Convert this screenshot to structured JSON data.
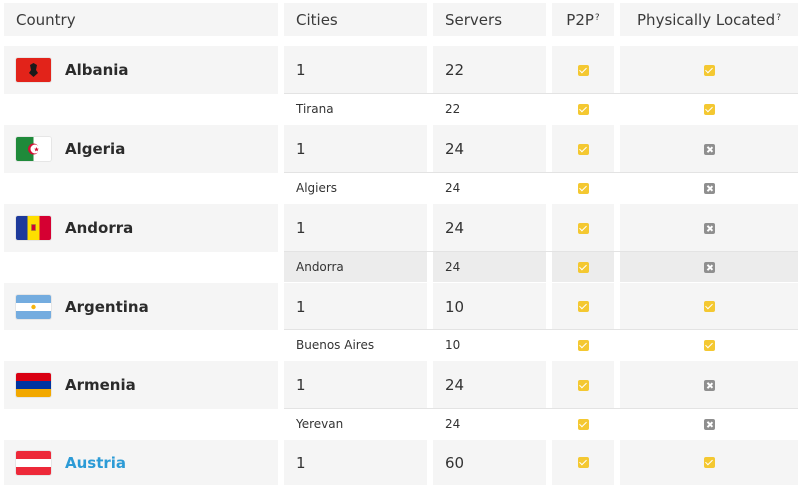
{
  "headers": {
    "country": "Country",
    "cities": "Cities",
    "servers": "Servers",
    "p2p": "P2P",
    "p2p_help": "?",
    "physically_located": "Physically Located",
    "physically_located_help": "?"
  },
  "rows": [
    {
      "country": "Albania",
      "flag": "albania-flag-icon",
      "cities_count": "1",
      "servers": "22",
      "p2p": true,
      "physical": true,
      "city": "Tirana",
      "city_servers": "22",
      "city_p2p": true,
      "city_physical": true
    },
    {
      "country": "Algeria",
      "flag": "algeria-flag-icon",
      "cities_count": "1",
      "servers": "24",
      "p2p": true,
      "physical": false,
      "city": "Algiers",
      "city_servers": "24",
      "city_p2p": true,
      "city_physical": false
    },
    {
      "country": "Andorra",
      "flag": "andorra-flag-icon",
      "cities_count": "1",
      "servers": "24",
      "p2p": true,
      "physical": false,
      "city": "Andorra",
      "city_servers": "24",
      "city_p2p": true,
      "city_physical": false
    },
    {
      "country": "Argentina",
      "flag": "argentina-flag-icon",
      "cities_count": "1",
      "servers": "10",
      "p2p": true,
      "physical": true,
      "city": "Buenos Aires",
      "city_servers": "10",
      "city_p2p": true,
      "city_physical": true
    },
    {
      "country": "Armenia",
      "flag": "armenia-flag-icon",
      "cities_count": "1",
      "servers": "24",
      "p2p": true,
      "physical": false,
      "city": "Yerevan",
      "city_servers": "24",
      "city_p2p": true,
      "city_physical": false
    },
    {
      "country": "Austria",
      "flag": "austria-flag-icon",
      "cities_count": "1",
      "servers": "60",
      "p2p": true,
      "physical": true
    }
  ],
  "colors": {
    "accent_yellow": "#f4c831",
    "cross_gray": "#8f8f8f",
    "link_blue": "#2c9bd6"
  }
}
